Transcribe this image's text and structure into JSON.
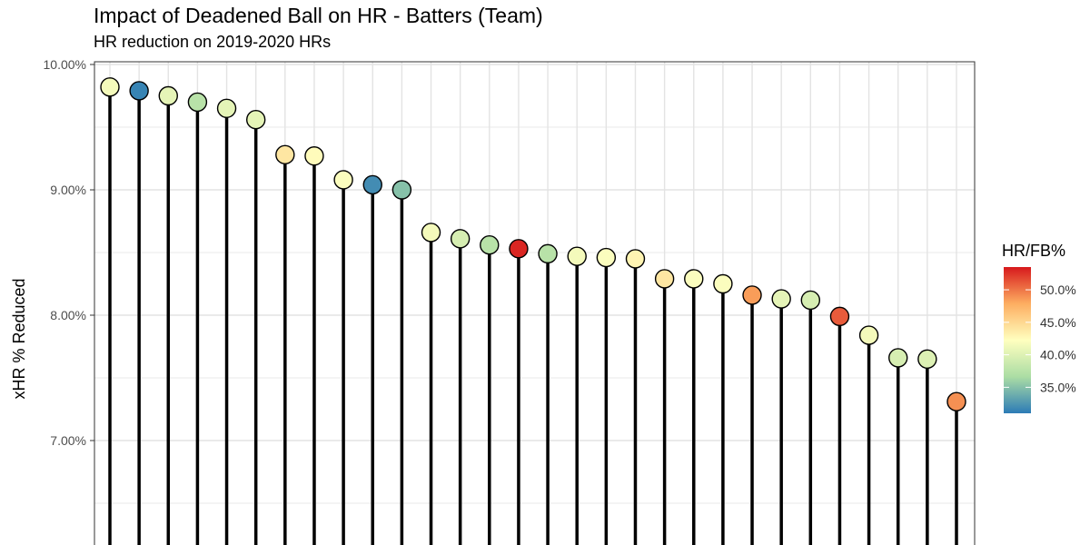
{
  "chart_data": {
    "type": "lollipop",
    "title": "Impact of Deadened Ball on HR - Batters (Team)",
    "subtitle": "HR reduction on 2019-2020 HRs",
    "ylabel": "xHR % Reduced",
    "xlabel": "",
    "ylim": [
      6.0,
      10.1
    ],
    "yticks": [
      {
        "value": 7.0,
        "label": "7.00%"
      },
      {
        "value": 8.0,
        "label": "8.00%"
      },
      {
        "value": 9.0,
        "label": "9.00%"
      },
      {
        "value": 10.0,
        "label": "10.00%"
      }
    ],
    "grid": true,
    "values": [
      9.82,
      9.79,
      9.75,
      9.7,
      9.65,
      9.56,
      9.28,
      9.27,
      9.08,
      9.04,
      9.0,
      8.66,
      8.61,
      8.56,
      8.53,
      8.49,
      8.47,
      8.46,
      8.45,
      8.29,
      8.29,
      8.25,
      8.16,
      8.13,
      8.12,
      7.99,
      7.84,
      7.66,
      7.65,
      7.31
    ],
    "hr_fb": [
      41.5,
      31.5,
      40.5,
      37.5,
      40.5,
      40.5,
      44.0,
      42.5,
      42.0,
      32.0,
      35.0,
      41.5,
      39.5,
      37.5,
      53.0,
      37.5,
      41.5,
      42.0,
      43.0,
      44.0,
      42.0,
      42.0,
      48.5,
      40.5,
      39.5,
      51.0,
      41.5,
      39.5,
      40.0,
      49.0
    ],
    "legend": {
      "title": "HR/FB%",
      "placement": "right",
      "range": [
        31.0,
        53.5
      ],
      "ticks": [
        {
          "value": 35,
          "label": "35.0%"
        },
        {
          "value": 40,
          "label": "40.0%"
        },
        {
          "value": 45,
          "label": "45.0%"
        },
        {
          "value": 50,
          "label": "50.0%"
        }
      ]
    },
    "colors": {
      "palette": [
        "#2C7BB6",
        "#ABDDA4",
        "#FFFFBF",
        "#FDAE61",
        "#D7191C"
      ],
      "stem": "#000000",
      "grid": "#e3e3e3",
      "panel_border": "#333333"
    }
  }
}
